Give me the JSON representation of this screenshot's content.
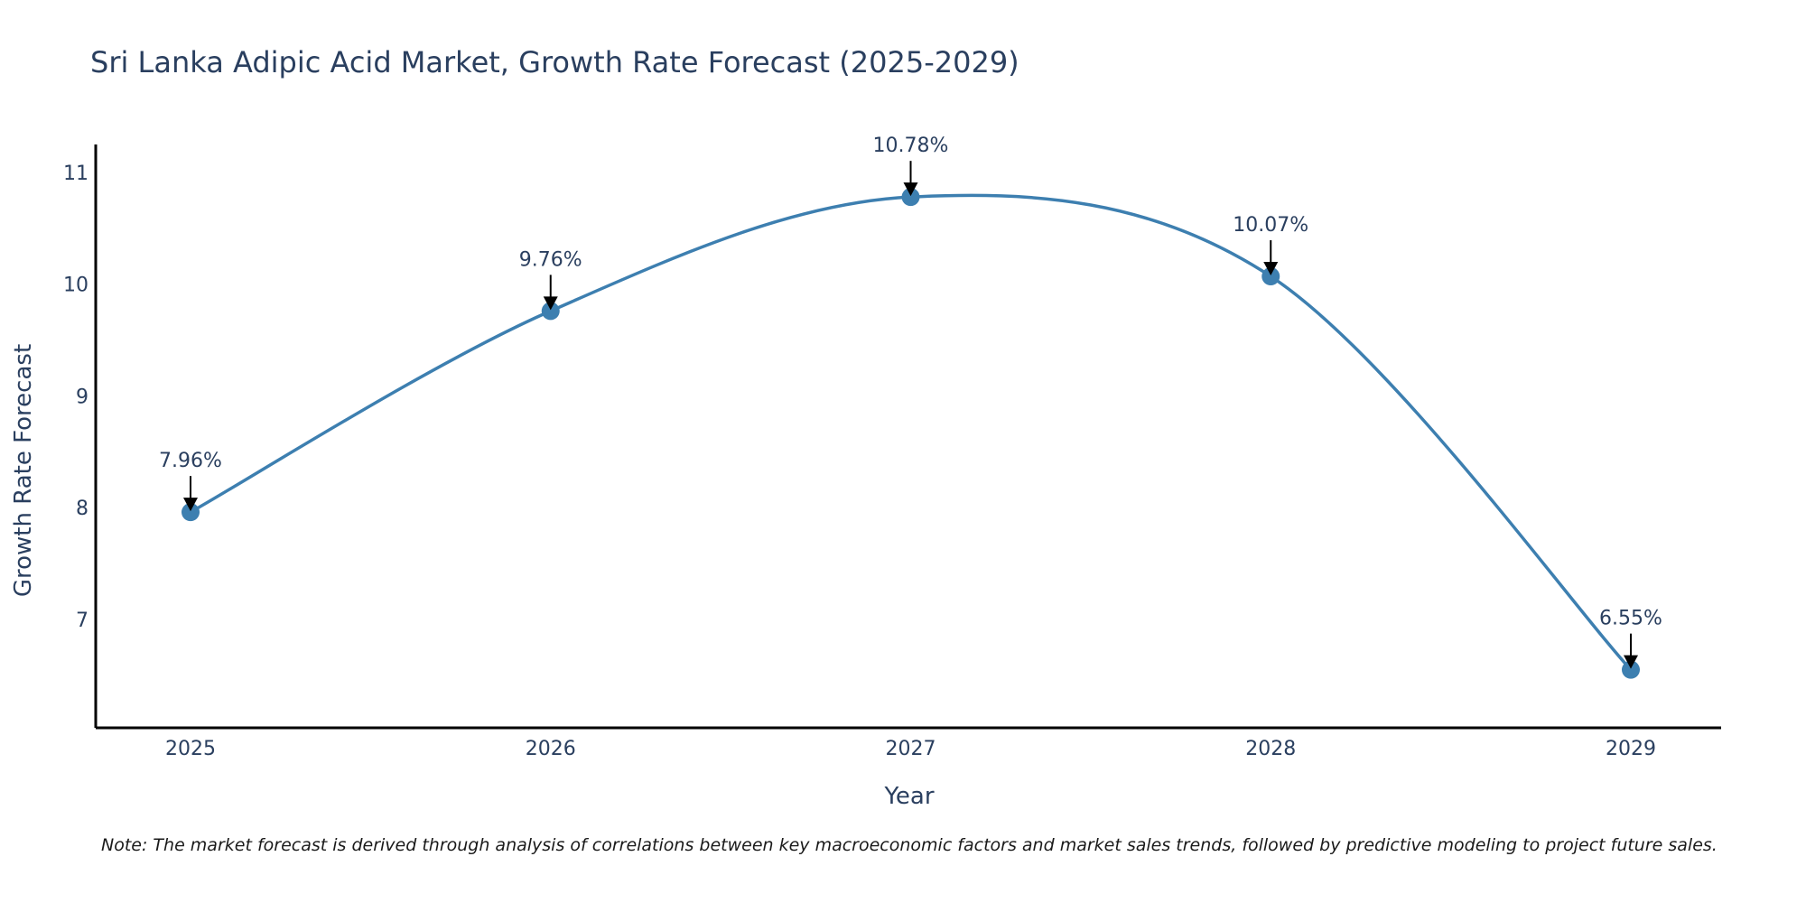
{
  "chart_data": {
    "type": "line",
    "title": "Sri Lanka Adipic Acid Market, Growth Rate Forecast (2025-2029)",
    "xlabel": "Year",
    "ylabel": "Growth Rate Forecast",
    "categories": [
      "2025",
      "2026",
      "2027",
      "2028",
      "2029"
    ],
    "values": [
      7.96,
      9.76,
      10.78,
      10.07,
      6.55
    ],
    "data_labels": [
      "7.96%",
      "9.76%",
      "10.78%",
      "10.07%",
      "6.55%"
    ],
    "yticks": [
      7,
      8,
      9,
      10,
      11
    ],
    "ylim": [
      6.03,
      11.25
    ],
    "line_color": "#3d7fb0",
    "marker_color": "#3d7fb0",
    "grid": false,
    "note": "Note: The market forecast is derived through analysis of correlations between key macroeconomic factors and market sales trends, followed by predictive modeling to project future sales."
  }
}
